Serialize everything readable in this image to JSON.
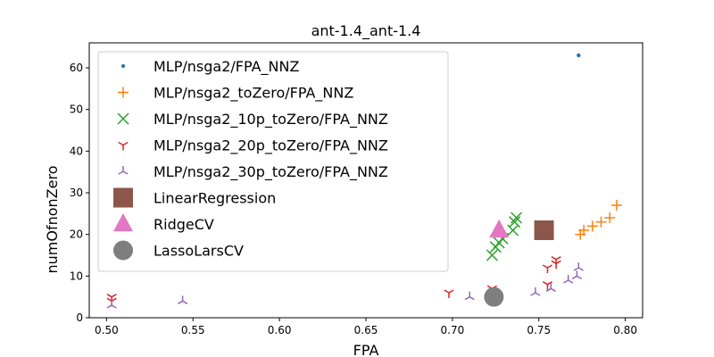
{
  "chart_data": {
    "type": "scatter",
    "title": "ant-1.4_ant-1.4",
    "xlabel": "FPA",
    "ylabel": "numOfnonZero",
    "xlim": [
      0.49,
      0.81
    ],
    "ylim": [
      0,
      66
    ],
    "xticks": [
      "0.50",
      "0.55",
      "0.60",
      "0.65",
      "0.70",
      "0.75",
      "0.80"
    ],
    "xtick_values": [
      0.5,
      0.55,
      0.6,
      0.65,
      0.7,
      0.75,
      0.8
    ],
    "yticks": [
      "0",
      "10",
      "20",
      "30",
      "40",
      "50",
      "60"
    ],
    "ytick_values": [
      0,
      10,
      20,
      30,
      40,
      50,
      60
    ],
    "grid": false,
    "legend_position": "top-left",
    "series": [
      {
        "name": "MLP/nsga2/FPA_NNZ",
        "marker": "dot",
        "color": "#1f77b4",
        "points": [
          [
            0.773,
            63
          ],
          [
            0.773,
            63
          ]
        ]
      },
      {
        "name": "MLP/nsga2_toZero/FPA_NNZ",
        "marker": "plus",
        "color": "#ff7f0e",
        "points": [
          [
            0.795,
            27
          ],
          [
            0.791,
            24
          ],
          [
            0.786,
            23
          ],
          [
            0.781,
            22
          ],
          [
            0.776,
            21
          ],
          [
            0.774,
            20
          ]
        ]
      },
      {
        "name": "MLP/nsga2_10p_toZero/FPA_NNZ",
        "marker": "x",
        "color": "#2ca02c",
        "points": [
          [
            0.737,
            24
          ],
          [
            0.736,
            23
          ],
          [
            0.735,
            21
          ],
          [
            0.729,
            19
          ],
          [
            0.727,
            18
          ],
          [
            0.725,
            17
          ],
          [
            0.723,
            15
          ]
        ]
      },
      {
        "name": "MLP/nsga2_20p_toZero/FPA_NNZ",
        "marker": "tri_down",
        "color": "#d62728",
        "points": [
          [
            0.76,
            14
          ],
          [
            0.76,
            13
          ],
          [
            0.755,
            12
          ],
          [
            0.755,
            8
          ],
          [
            0.723,
            7
          ],
          [
            0.698,
            6
          ],
          [
            0.503,
            5
          ],
          [
            0.503,
            4
          ]
        ]
      },
      {
        "name": "MLP/nsga2_30p_toZero/FPA_NNZ",
        "marker": "tri_up",
        "color": "#9467bd",
        "points": [
          [
            0.773,
            12
          ],
          [
            0.772,
            10
          ],
          [
            0.767,
            9
          ],
          [
            0.757,
            7
          ],
          [
            0.748,
            6
          ],
          [
            0.71,
            5
          ],
          [
            0.544,
            4
          ],
          [
            0.503,
            3
          ]
        ]
      },
      {
        "name": "LinearRegression",
        "marker": "square",
        "color": "#8c564b",
        "points": [
          [
            0.753,
            21
          ]
        ]
      },
      {
        "name": "RidgeCV",
        "marker": "triangle",
        "color": "#e377c2",
        "points": [
          [
            0.727,
            21
          ]
        ]
      },
      {
        "name": "LassoLarsCV",
        "marker": "circle",
        "color": "#7f7f7f",
        "points": [
          [
            0.724,
            5
          ]
        ]
      }
    ]
  }
}
